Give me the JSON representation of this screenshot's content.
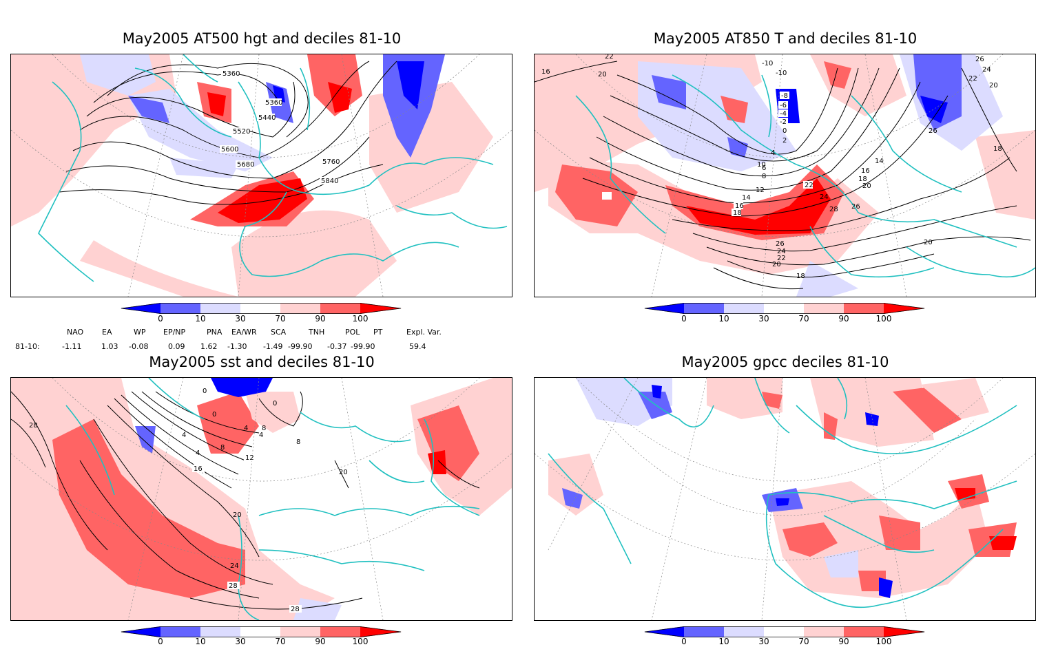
{
  "panels": [
    {
      "id": "p1",
      "title": "May2005 AT500 hgt and deciles 81-10",
      "contour_labels": [
        "5360",
        "5360",
        "5440",
        "5520",
        "5600",
        "5680",
        "5760",
        "5840"
      ]
    },
    {
      "id": "p2",
      "title": "May2005 AT850 T and deciles 81-10",
      "contour_labels": [
        "16",
        "22",
        "20",
        "-10",
        "-10",
        "-8",
        "-6",
        "-4",
        "-2",
        "0",
        "2",
        "4",
        "6",
        "8",
        "10",
        "12",
        "14",
        "16",
        "18",
        "22",
        "24",
        "28",
        "26",
        "26",
        "24",
        "22",
        "20",
        "18",
        "14",
        "16",
        "18",
        "20",
        "26",
        "24",
        "22",
        "20",
        "18",
        "26",
        "20"
      ]
    },
    {
      "id": "p3",
      "title": "May2005 sst and deciles 81-10",
      "contour_labels": [
        "0",
        "28",
        "0",
        "0",
        "4",
        "4",
        "8",
        "4",
        "4",
        "8",
        "12",
        "16",
        "8",
        "20",
        "20",
        "24",
        "28",
        "28"
      ]
    },
    {
      "id": "p4",
      "title": "May2005 gpcc deciles 81-10",
      "contour_labels": []
    }
  ],
  "colorbar": {
    "ticks": [
      "0",
      "10",
      "30",
      "70",
      "90",
      "100"
    ],
    "colors": {
      "deep_blue": "#0000ff",
      "mid_blue": "#6464ff",
      "light_blue": "#dcdcff",
      "white": "#ffffff",
      "light_red": "#ffd2d2",
      "mid_red": "#ff6464",
      "deep_red": "#ff0000"
    }
  },
  "indices": {
    "headers": [
      "NAO",
      "EA",
      "WP",
      "EP/NP",
      "PNA",
      "EA/WR",
      "SCA",
      "TNH",
      "POL",
      "PT",
      "Expl. Var."
    ],
    "row_label": "81-10:",
    "values": [
      "-1.11",
      "1.03",
      "-0.08",
      "0.09",
      "1.62",
      "-1.30",
      "-1.49",
      "-99.90",
      "-0.37",
      "-99.90",
      "59.4"
    ]
  },
  "colors": {
    "coast": "#20c0c0",
    "contour": "#000000"
  }
}
